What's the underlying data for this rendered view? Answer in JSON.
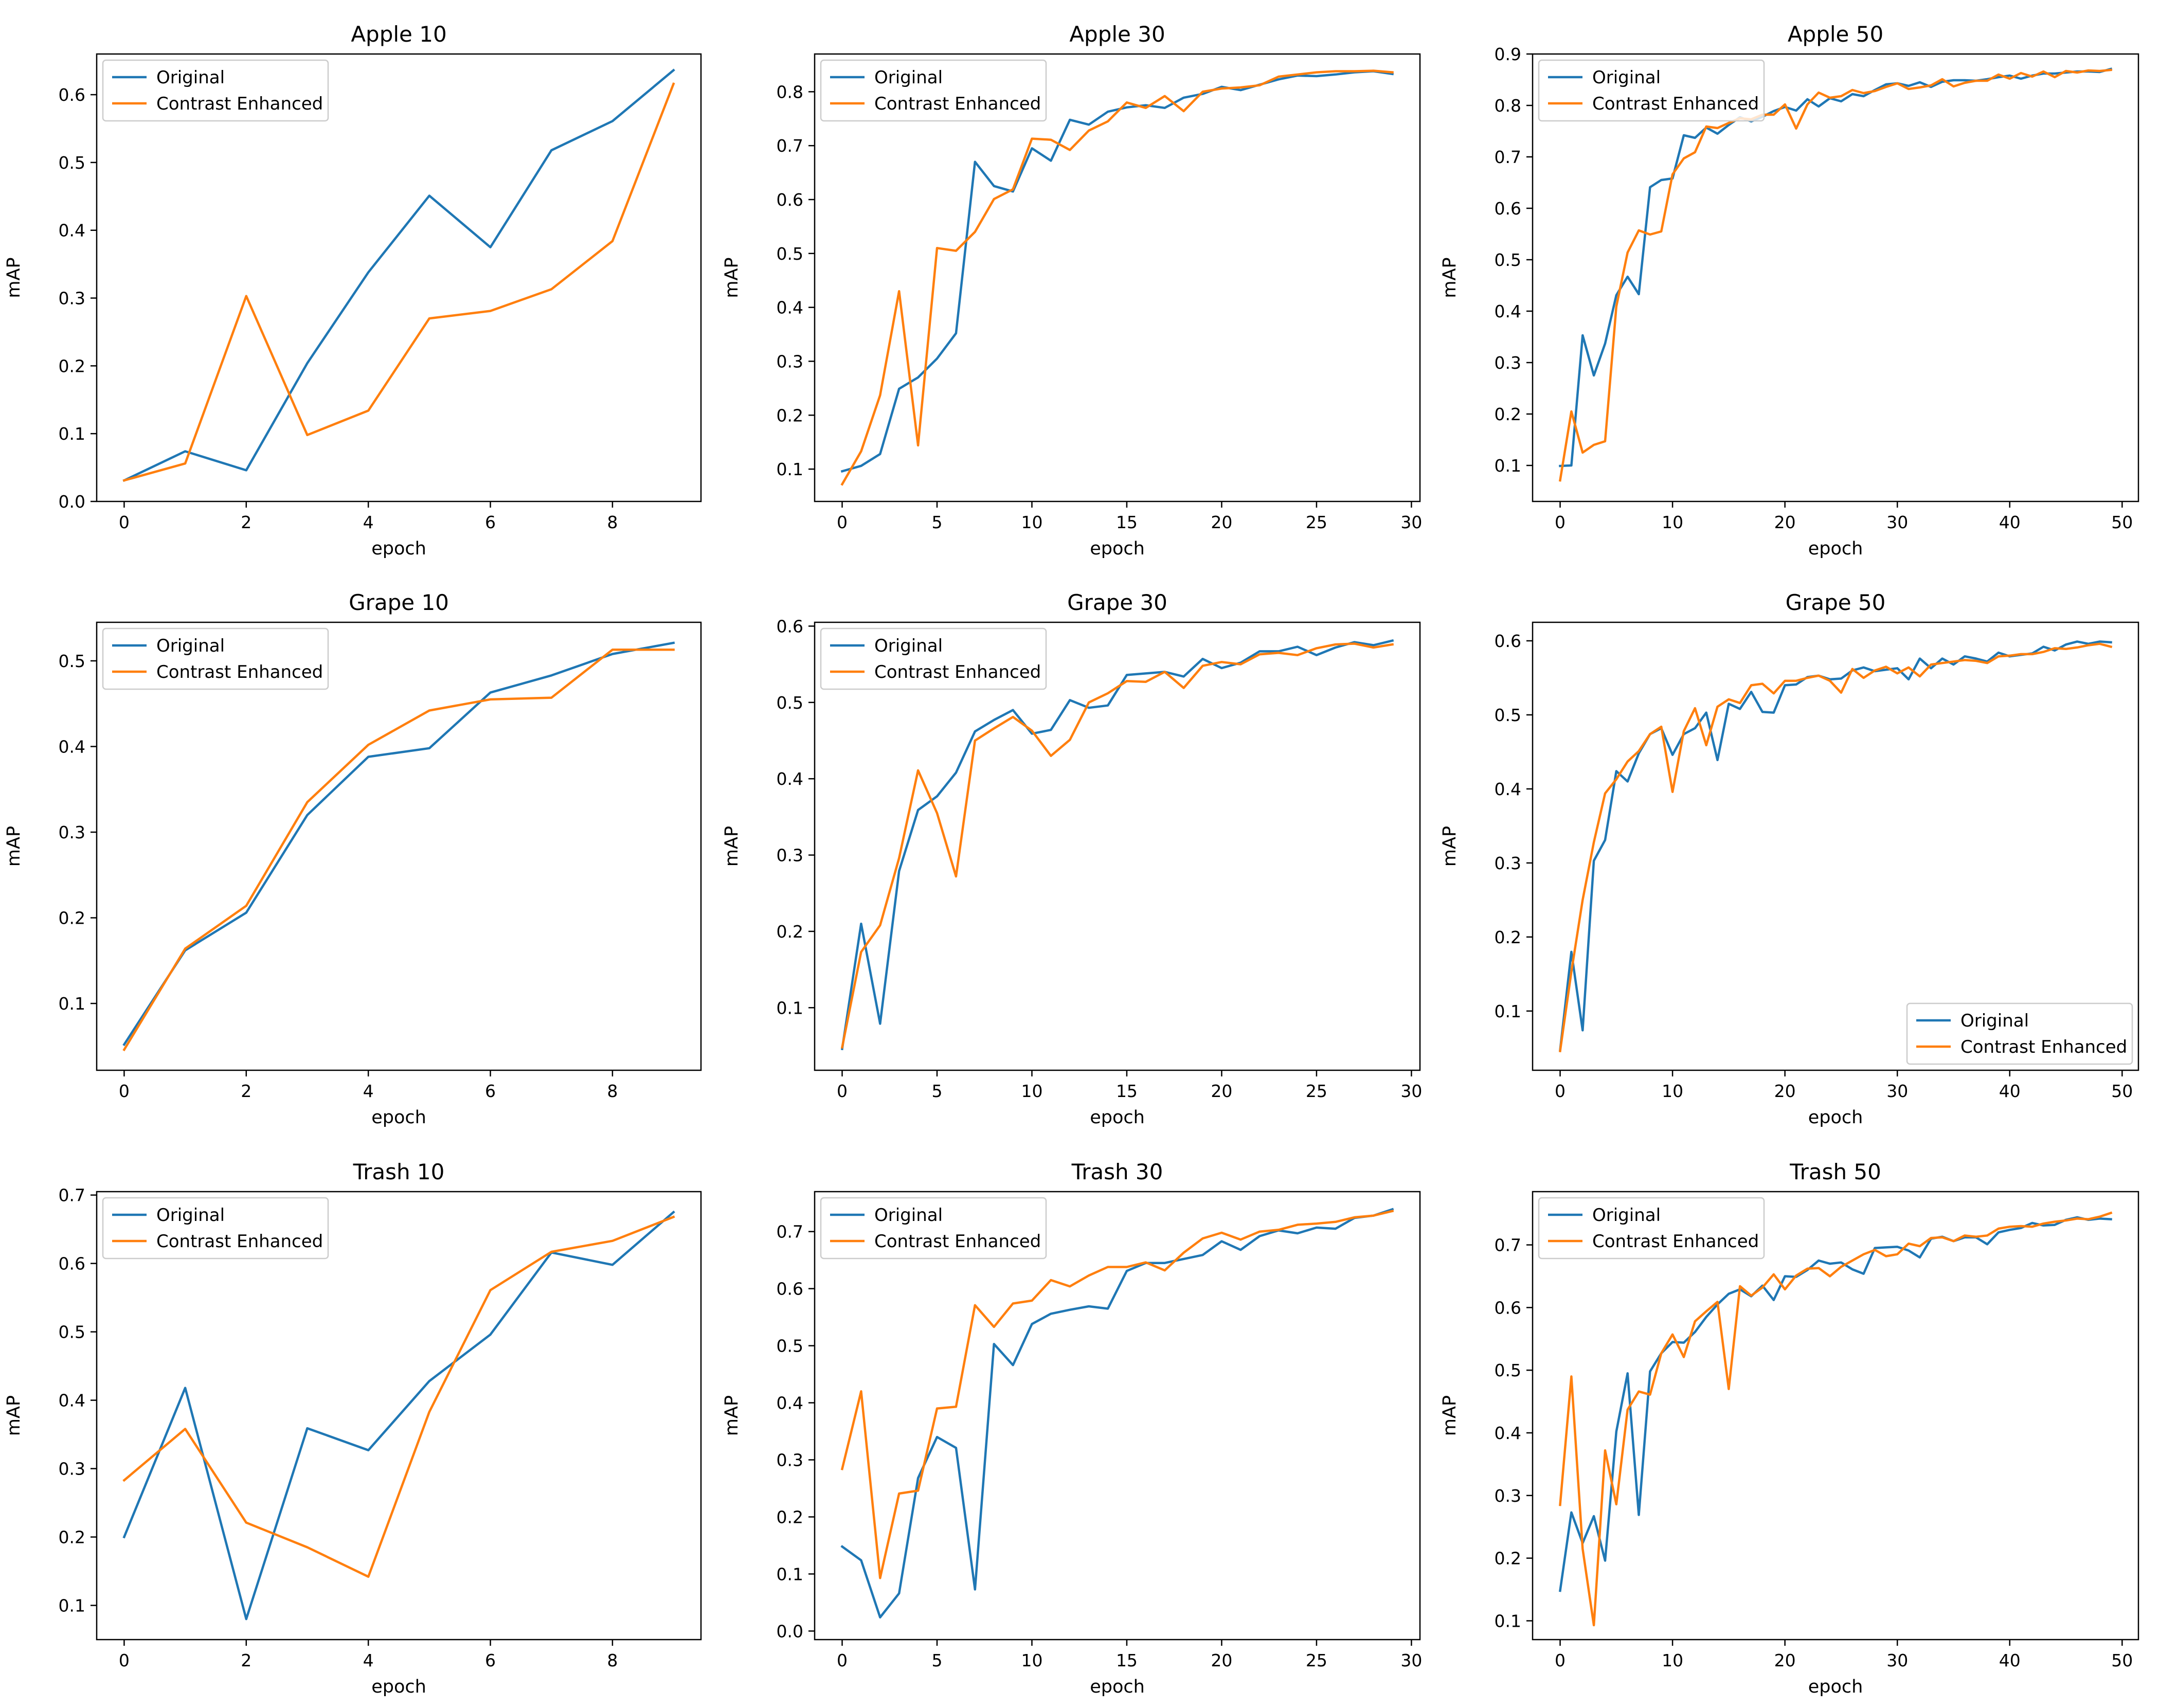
{
  "figure": {
    "name": "map-training-curves"
  },
  "colors": {
    "original": "#1f77b4",
    "enhanced": "#ff7f0e",
    "axis": "#000000",
    "legend_border": "#cccccc"
  },
  "chart_data": [
    {
      "type": "line",
      "title": "Apple 10",
      "xlabel": "epoch",
      "ylabel": "mAP",
      "xlim": [
        -0.45,
        9.45
      ],
      "ylim": [
        0.0,
        0.66
      ],
      "xticks": [
        0,
        2,
        4,
        6,
        8
      ],
      "yticks": [
        0.0,
        0.1,
        0.2,
        0.3,
        0.4,
        0.5,
        0.6
      ],
      "legend_position": "top-left",
      "series": [
        {
          "name": "Original",
          "values": [
            0.031,
            0.074,
            0.046,
            0.204,
            0.338,
            0.451,
            0.375,
            0.518,
            0.561,
            0.636
          ]
        },
        {
          "name": "Contrast Enhanced",
          "values": [
            0.031,
            0.056,
            0.303,
            0.098,
            0.134,
            0.27,
            0.281,
            0.313,
            0.384,
            0.616
          ]
        }
      ]
    },
    {
      "type": "line",
      "title": "Apple 30",
      "xlabel": "epoch",
      "ylabel": "mAP",
      "xlim": [
        -1.45,
        30.45
      ],
      "ylim": [
        0.04,
        0.87
      ],
      "xticks": [
        0,
        5,
        10,
        15,
        20,
        25,
        30
      ],
      "yticks": [
        0.1,
        0.2,
        0.3,
        0.4,
        0.5,
        0.6,
        0.7,
        0.8
      ],
      "legend_position": "top-left",
      "series": [
        {
          "name": "Original",
          "values": [
            0.096,
            0.106,
            0.128,
            0.249,
            0.27,
            0.305,
            0.352,
            0.67,
            0.625,
            0.615,
            0.695,
            0.672,
            0.748,
            0.739,
            0.763,
            0.771,
            0.775,
            0.77,
            0.789,
            0.796,
            0.809,
            0.803,
            0.813,
            0.823,
            0.83,
            0.829,
            0.832,
            0.836,
            0.838,
            0.833
          ]
        },
        {
          "name": "Contrast Enhanced",
          "values": [
            0.072,
            0.133,
            0.237,
            0.43,
            0.144,
            0.51,
            0.505,
            0.54,
            0.601,
            0.619,
            0.713,
            0.711,
            0.692,
            0.728,
            0.745,
            0.78,
            0.77,
            0.792,
            0.764,
            0.8,
            0.806,
            0.808,
            0.812,
            0.828,
            0.832,
            0.836,
            0.838,
            0.838,
            0.839,
            0.836
          ]
        }
      ]
    },
    {
      "type": "line",
      "title": "Apple 50",
      "xlabel": "epoch",
      "ylabel": "mAP",
      "xlim": [
        -2.45,
        51.45
      ],
      "ylim": [
        0.03,
        0.9
      ],
      "xticks": [
        0,
        10,
        20,
        30,
        40,
        50
      ],
      "yticks": [
        0.1,
        0.2,
        0.3,
        0.4,
        0.5,
        0.6,
        0.7,
        0.8,
        0.9
      ],
      "legend_position": "top-left",
      "series": [
        {
          "name": "Original",
          "values": [
            0.099,
            0.1,
            0.353,
            0.275,
            0.337,
            0.431,
            0.467,
            0.433,
            0.641,
            0.655,
            0.658,
            0.742,
            0.737,
            0.757,
            0.745,
            0.762,
            0.777,
            0.769,
            0.778,
            0.789,
            0.797,
            0.79,
            0.812,
            0.798,
            0.814,
            0.808,
            0.822,
            0.818,
            0.83,
            0.841,
            0.843,
            0.838,
            0.845,
            0.836,
            0.846,
            0.849,
            0.849,
            0.848,
            0.851,
            0.855,
            0.858,
            0.852,
            0.858,
            0.862,
            0.862,
            0.864,
            0.866,
            0.866,
            0.865,
            0.871
          ]
        },
        {
          "name": "Contrast Enhanced",
          "values": [
            0.071,
            0.205,
            0.125,
            0.14,
            0.147,
            0.409,
            0.514,
            0.557,
            0.549,
            0.555,
            0.666,
            0.697,
            0.709,
            0.759,
            0.756,
            0.766,
            0.775,
            0.773,
            0.782,
            0.782,
            0.802,
            0.755,
            0.802,
            0.825,
            0.815,
            0.818,
            0.83,
            0.824,
            0.828,
            0.836,
            0.843,
            0.832,
            0.835,
            0.839,
            0.851,
            0.837,
            0.844,
            0.848,
            0.848,
            0.86,
            0.852,
            0.863,
            0.856,
            0.866,
            0.855,
            0.867,
            0.864,
            0.868,
            0.867,
            0.869
          ]
        }
      ]
    },
    {
      "type": "line",
      "title": "Grape 10",
      "xlabel": "epoch",
      "ylabel": "mAP",
      "xlim": [
        -0.45,
        9.45
      ],
      "ylim": [
        0.022,
        0.545
      ],
      "xticks": [
        0,
        2,
        4,
        6,
        8
      ],
      "yticks": [
        0.1,
        0.2,
        0.3,
        0.4,
        0.5
      ],
      "legend_position": "top-left",
      "series": [
        {
          "name": "Original",
          "values": [
            0.052,
            0.162,
            0.206,
            0.32,
            0.388,
            0.398,
            0.463,
            0.483,
            0.508,
            0.521
          ]
        },
        {
          "name": "Contrast Enhanced",
          "values": [
            0.046,
            0.164,
            0.214,
            0.335,
            0.402,
            0.442,
            0.455,
            0.457,
            0.513,
            0.513
          ]
        }
      ]
    },
    {
      "type": "line",
      "title": "Grape 30",
      "xlabel": "epoch",
      "ylabel": "mAP",
      "xlim": [
        -1.45,
        30.45
      ],
      "ylim": [
        0.018,
        0.605
      ],
      "xticks": [
        0,
        5,
        10,
        15,
        20,
        25,
        30
      ],
      "yticks": [
        0.1,
        0.2,
        0.3,
        0.4,
        0.5,
        0.6
      ],
      "legend_position": "top-left",
      "series": [
        {
          "name": "Original",
          "values": [
            0.046,
            0.21,
            0.079,
            0.279,
            0.359,
            0.377,
            0.408,
            0.462,
            0.477,
            0.49,
            0.459,
            0.464,
            0.503,
            0.493,
            0.496,
            0.536,
            0.538,
            0.54,
            0.534,
            0.557,
            0.545,
            0.552,
            0.567,
            0.567,
            0.573,
            0.562,
            0.572,
            0.579,
            0.575,
            0.581
          ]
        },
        {
          "name": "Contrast Enhanced",
          "values": [
            0.048,
            0.173,
            0.208,
            0.296,
            0.411,
            0.355,
            0.272,
            0.45,
            0.466,
            0.481,
            0.463,
            0.43,
            0.451,
            0.5,
            0.512,
            0.528,
            0.527,
            0.54,
            0.519,
            0.548,
            0.553,
            0.55,
            0.563,
            0.565,
            0.562,
            0.571,
            0.576,
            0.577,
            0.572,
            0.576
          ]
        }
      ]
    },
    {
      "type": "line",
      "title": "Grape 50",
      "xlabel": "epoch",
      "ylabel": "mAP",
      "xlim": [
        -2.45,
        51.45
      ],
      "ylim": [
        0.02,
        0.625
      ],
      "xticks": [
        0,
        10,
        20,
        30,
        40,
        50
      ],
      "yticks": [
        0.1,
        0.2,
        0.3,
        0.4,
        0.5,
        0.6
      ],
      "legend_position": "bottom-right",
      "series": [
        {
          "name": "Original",
          "values": [
            0.047,
            0.18,
            0.074,
            0.303,
            0.331,
            0.424,
            0.41,
            0.448,
            0.474,
            0.482,
            0.446,
            0.474,
            0.482,
            0.503,
            0.439,
            0.515,
            0.508,
            0.531,
            0.504,
            0.503,
            0.54,
            0.541,
            0.551,
            0.553,
            0.548,
            0.549,
            0.56,
            0.564,
            0.559,
            0.561,
            0.563,
            0.548,
            0.576,
            0.563,
            0.576,
            0.568,
            0.579,
            0.576,
            0.572,
            0.584,
            0.579,
            0.581,
            0.583,
            0.592,
            0.587,
            0.595,
            0.599,
            0.596,
            0.599,
            0.598
          ]
        },
        {
          "name": "Contrast Enhanced",
          "values": [
            0.046,
            0.153,
            0.25,
            0.328,
            0.394,
            0.413,
            0.437,
            0.451,
            0.474,
            0.484,
            0.396,
            0.478,
            0.509,
            0.459,
            0.511,
            0.521,
            0.516,
            0.54,
            0.542,
            0.529,
            0.546,
            0.546,
            0.55,
            0.553,
            0.546,
            0.53,
            0.562,
            0.55,
            0.56,
            0.565,
            0.556,
            0.564,
            0.552,
            0.568,
            0.57,
            0.572,
            0.574,
            0.573,
            0.57,
            0.579,
            0.58,
            0.582,
            0.582,
            0.585,
            0.59,
            0.589,
            0.591,
            0.594,
            0.596,
            0.592
          ]
        }
      ]
    },
    {
      "type": "line",
      "title": "Trash 10",
      "xlabel": "epoch",
      "ylabel": "mAP",
      "xlim": [
        -0.45,
        9.45
      ],
      "ylim": [
        0.05,
        0.705
      ],
      "xticks": [
        0,
        2,
        4,
        6,
        8
      ],
      "yticks": [
        0.1,
        0.2,
        0.3,
        0.4,
        0.5,
        0.6,
        0.7
      ],
      "legend_position": "top-left",
      "series": [
        {
          "name": "Original",
          "values": [
            0.2,
            0.418,
            0.08,
            0.359,
            0.327,
            0.428,
            0.496,
            0.616,
            0.598,
            0.675
          ]
        },
        {
          "name": "Contrast Enhanced",
          "values": [
            0.283,
            0.358,
            0.221,
            0.185,
            0.142,
            0.383,
            0.561,
            0.617,
            0.633,
            0.668
          ]
        }
      ]
    },
    {
      "type": "line",
      "title": "Trash 30",
      "xlabel": "epoch",
      "ylabel": "mAP",
      "xlim": [
        -1.45,
        30.45
      ],
      "ylim": [
        -0.015,
        0.77
      ],
      "xticks": [
        0,
        5,
        10,
        15,
        20,
        25,
        30
      ],
      "yticks": [
        0.0,
        0.1,
        0.2,
        0.3,
        0.4,
        0.5,
        0.6,
        0.7
      ],
      "legend_position": "top-left",
      "series": [
        {
          "name": "Original",
          "values": [
            0.148,
            0.124,
            0.024,
            0.066,
            0.268,
            0.34,
            0.321,
            0.073,
            0.503,
            0.466,
            0.538,
            0.556,
            0.563,
            0.569,
            0.565,
            0.631,
            0.645,
            0.645,
            0.652,
            0.659,
            0.683,
            0.668,
            0.692,
            0.702,
            0.697,
            0.707,
            0.705,
            0.724,
            0.728,
            0.739
          ]
        },
        {
          "name": "Contrast Enhanced",
          "values": [
            0.284,
            0.42,
            0.093,
            0.241,
            0.246,
            0.39,
            0.393,
            0.571,
            0.533,
            0.574,
            0.579,
            0.615,
            0.604,
            0.623,
            0.638,
            0.638,
            0.646,
            0.632,
            0.663,
            0.688,
            0.698,
            0.686,
            0.7,
            0.703,
            0.712,
            0.714,
            0.717,
            0.725,
            0.728,
            0.736
          ]
        }
      ]
    },
    {
      "type": "line",
      "title": "Trash 50",
      "xlabel": "epoch",
      "ylabel": "mAP",
      "xlim": [
        -2.45,
        51.45
      ],
      "ylim": [
        0.07,
        0.785
      ],
      "xticks": [
        0,
        10,
        20,
        30,
        40,
        50
      ],
      "yticks": [
        0.1,
        0.2,
        0.3,
        0.4,
        0.5,
        0.6,
        0.7
      ],
      "legend_position": "top-left",
      "series": [
        {
          "name": "Original",
          "values": [
            0.148,
            0.273,
            0.224,
            0.267,
            0.196,
            0.402,
            0.495,
            0.269,
            0.498,
            0.527,
            0.545,
            0.544,
            0.561,
            0.585,
            0.605,
            0.622,
            0.629,
            0.618,
            0.635,
            0.612,
            0.65,
            0.649,
            0.66,
            0.675,
            0.67,
            0.672,
            0.661,
            0.654,
            0.695,
            0.696,
            0.697,
            0.691,
            0.68,
            0.71,
            0.713,
            0.706,
            0.712,
            0.712,
            0.701,
            0.72,
            0.724,
            0.727,
            0.735,
            0.731,
            0.732,
            0.74,
            0.744,
            0.74,
            0.742,
            0.741
          ]
        },
        {
          "name": "Contrast Enhanced",
          "values": [
            0.285,
            0.49,
            0.215,
            0.093,
            0.372,
            0.286,
            0.437,
            0.466,
            0.461,
            0.527,
            0.557,
            0.521,
            0.578,
            0.594,
            0.609,
            0.47,
            0.634,
            0.619,
            0.632,
            0.653,
            0.629,
            0.651,
            0.662,
            0.663,
            0.65,
            0.665,
            0.675,
            0.685,
            0.692,
            0.682,
            0.685,
            0.702,
            0.698,
            0.711,
            0.712,
            0.706,
            0.715,
            0.713,
            0.715,
            0.726,
            0.729,
            0.73,
            0.729,
            0.734,
            0.737,
            0.739,
            0.742,
            0.741,
            0.745,
            0.751
          ]
        }
      ]
    }
  ]
}
